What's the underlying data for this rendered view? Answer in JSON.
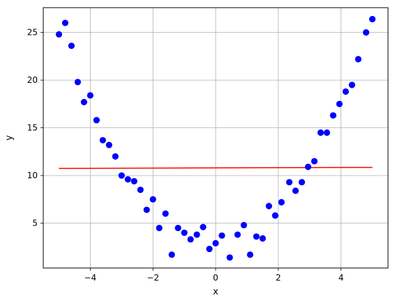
{
  "chart_data": {
    "type": "scatter",
    "title": "",
    "xlabel": "x",
    "ylabel": "y",
    "xlim": [
      -5.5,
      5.5
    ],
    "ylim": [
      0.3,
      27.6
    ],
    "xticks": [
      -4,
      -2,
      0,
      2,
      4
    ],
    "xtick_labels": [
      "−4",
      "−2",
      "0",
      "2",
      "4"
    ],
    "yticks": [
      5,
      10,
      15,
      20,
      25
    ],
    "ytick_labels": [
      "5",
      "10",
      "15",
      "20",
      "25"
    ],
    "grid": true,
    "legend": "none",
    "series": [
      {
        "kind": "scatter",
        "color": "#0000ff",
        "x": [
          -5.0,
          -4.8,
          -4.6,
          -4.4,
          -4.2,
          -4.0,
          -3.8,
          -3.6,
          -3.4,
          -3.2,
          -3.0,
          -2.8,
          -2.6,
          -2.4,
          -2.2,
          -2.0,
          -1.8,
          -1.6,
          -1.4,
          -1.2,
          -1.0,
          -0.8,
          -0.6,
          -0.4,
          -0.2,
          0.0,
          0.2,
          0.45,
          0.7,
          0.9,
          1.1,
          1.3,
          1.5,
          1.7,
          1.9,
          2.1,
          2.35,
          2.55,
          2.75,
          2.95,
          3.15,
          3.35,
          3.55,
          3.75,
          3.95,
          4.15,
          4.35,
          4.55,
          4.8,
          5.0
        ],
        "y": [
          24.8,
          26.0,
          23.6,
          19.8,
          17.7,
          18.4,
          15.8,
          13.7,
          13.2,
          12.0,
          10.0,
          9.6,
          9.4,
          8.5,
          6.4,
          7.5,
          4.5,
          6.0,
          1.7,
          4.5,
          4.0,
          3.3,
          3.8,
          4.6,
          2.3,
          2.9,
          3.7,
          1.4,
          3.8,
          4.8,
          1.7,
          3.6,
          3.4,
          6.8,
          5.8,
          7.2,
          9.3,
          8.4,
          9.3,
          10.9,
          11.5,
          14.5,
          14.5,
          16.3,
          17.5,
          18.8,
          19.5,
          22.2,
          25.0,
          26.4
        ]
      },
      {
        "kind": "line",
        "color": "#ff0000",
        "x": [
          -5.0,
          5.0
        ],
        "y": [
          10.75,
          10.85
        ]
      }
    ]
  }
}
